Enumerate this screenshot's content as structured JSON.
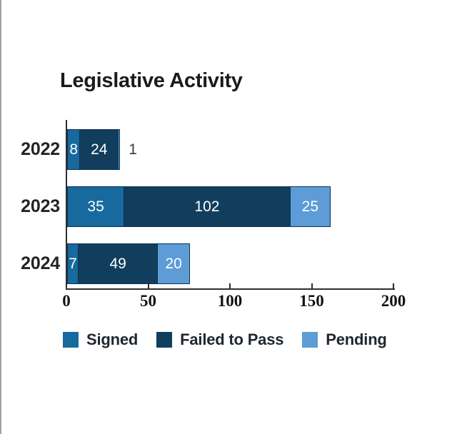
{
  "chart_data": {
    "type": "bar",
    "orientation": "horizontal",
    "stacked": true,
    "title": "Legislative Activity",
    "categories": [
      "2022",
      "2023",
      "2024"
    ],
    "series": [
      {
        "name": "Signed",
        "color": "#17699e",
        "values": [
          8,
          35,
          7
        ]
      },
      {
        "name": "Failed to Pass",
        "color": "#123e5d",
        "values": [
          24,
          102,
          49
        ]
      },
      {
        "name": "Pending",
        "color": "#5d9cd6",
        "values": [
          1,
          25,
          20
        ]
      }
    ],
    "x_ticks": [
      0,
      50,
      100,
      150,
      200
    ],
    "xlim": [
      0,
      200
    ],
    "grid": false,
    "legend_position": "bottom",
    "value_label_placement": "inside segments in white; tiny segments labeled outside in dark gray",
    "colors": {
      "axis": "#2e2e2e",
      "tick_label": "#121212",
      "year_label": "#242424",
      "value_label": "#ffffff",
      "outside_value_label": "#3a3a3a",
      "segment_border": "#0d3150",
      "legend_label": "#1f2730",
      "page_edge": "#a2a2a2",
      "title": "#1b1b1d"
    }
  }
}
